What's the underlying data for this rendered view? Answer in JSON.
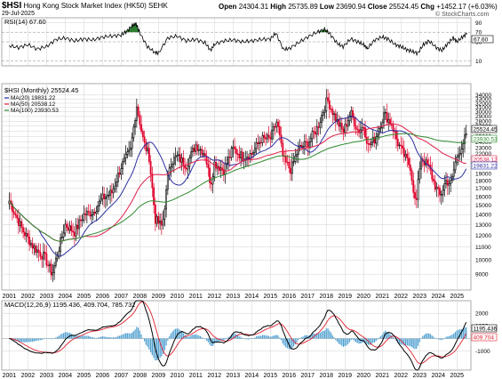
{
  "header": {
    "symbol": "$HSI",
    "name": "Hong Kong Stock Market Index (HK50)",
    "exchange": "SEHK",
    "date": "29-Jul-2025",
    "open_label": "Open",
    "open": "24304.31",
    "high_label": "High",
    "high": "25735.89",
    "low_label": "Low",
    "low": "23690.94",
    "close_label": "Close",
    "close": "25524.45",
    "chg_label": "Chg",
    "chg": "+1452.17 (+6.03%)",
    "source": "© StockCharts.com"
  },
  "colors": {
    "price_up": "#000000",
    "price_down": "#e0002a",
    "ma20": "#2c2fa0",
    "ma50": "#e0204a",
    "ma100": "#2e8b2e",
    "rsi_fill": "#2e7d32",
    "macd_line": "#000000",
    "signal_line": "#e02030",
    "histogram": "#4f9fd0",
    "grid": "#d0d0d0"
  },
  "chart_data": [
    {
      "id": "rsi",
      "type": "line",
      "title": "RSI(14) 67.60",
      "ylim": [
        0,
        100
      ],
      "y_ticks": [
        10,
        50,
        70,
        90
      ],
      "grid": true,
      "value_label": "67.60",
      "x": [
        2001.0,
        2001.5,
        2002.0,
        2002.5,
        2003.0,
        2003.5,
        2004.0,
        2004.5,
        2005.0,
        2005.5,
        2006.0,
        2006.5,
        2007.0,
        2007.3,
        2007.6,
        2007.8,
        2008.0,
        2008.4,
        2008.8,
        2009.0,
        2009.5,
        2010.0,
        2010.5,
        2011.0,
        2011.5,
        2011.8,
        2012.0,
        2012.5,
        2013.0,
        2013.5,
        2014.0,
        2014.5,
        2015.0,
        2015.3,
        2015.7,
        2016.0,
        2016.5,
        2017.0,
        2017.5,
        2017.9,
        2018.2,
        2018.6,
        2018.9,
        2019.3,
        2019.7,
        2020.0,
        2020.2,
        2020.6,
        2021.0,
        2021.3,
        2021.7,
        2022.0,
        2022.3,
        2022.6,
        2022.9,
        2023.2,
        2023.5,
        2023.9,
        2024.2,
        2024.5,
        2024.8,
        2025.0,
        2025.3,
        2025.55
      ],
      "values": [
        42,
        38,
        44,
        35,
        40,
        55,
        58,
        52,
        56,
        54,
        60,
        62,
        64,
        72,
        84,
        88,
        68,
        40,
        28,
        26,
        58,
        62,
        52,
        55,
        48,
        32,
        45,
        52,
        54,
        50,
        52,
        55,
        56,
        68,
        34,
        36,
        48,
        60,
        70,
        76,
        66,
        46,
        40,
        56,
        50,
        44,
        36,
        54,
        60,
        56,
        44,
        40,
        34,
        30,
        26,
        44,
        52,
        38,
        32,
        46,
        58,
        50,
        60,
        67.6
      ]
    },
    {
      "id": "price",
      "type": "candlestick",
      "title": "$HSI (Monthly) 25524.45",
      "scale": "log",
      "ylim": [
        8000,
        37000
      ],
      "y_ticks": [
        9000,
        10000,
        11000,
        12000,
        13000,
        14000,
        15000,
        16000,
        17000,
        18000,
        19000,
        20000,
        21000,
        22000,
        23000,
        24000,
        25000,
        26000,
        27000,
        28000,
        29000,
        30000,
        31000,
        32000,
        33000,
        34000
      ],
      "x_ticks": [
        "2001",
        "2002",
        "2003",
        "2004",
        "2005",
        "2006",
        "2007",
        "2008",
        "2009",
        "2010",
        "2011",
        "2012",
        "2013",
        "2014",
        "2015",
        "2016",
        "2017",
        "2018",
        "2019",
        "2020",
        "2021",
        "2022",
        "2023",
        "2024",
        "2025"
      ],
      "grid": true,
      "series": [
        {
          "name": "MA(20) 19831.22",
          "value_label": "19831.22"
        },
        {
          "name": "MA(50) 20538.12",
          "value_label": "20538.12"
        },
        {
          "name": "MA(100) 23930.53",
          "value_label": "23930.53"
        }
      ],
      "price_value_label": "25524.45",
      "anchor_x": [
        2001.0,
        2001.7,
        2002.3,
        2002.9,
        2003.3,
        2004.0,
        2004.5,
        2005.0,
        2005.5,
        2006.0,
        2006.5,
        2007.0,
        2007.5,
        2007.83,
        2008.2,
        2008.5,
        2008.83,
        2009.2,
        2009.6,
        2010.0,
        2010.5,
        2011.0,
        2011.5,
        2011.8,
        2012.0,
        2012.5,
        2013.0,
        2013.5,
        2014.0,
        2014.5,
        2015.0,
        2015.35,
        2015.7,
        2016.1,
        2016.5,
        2017.0,
        2017.5,
        2018.05,
        2018.5,
        2018.9,
        2019.3,
        2019.7,
        2020.0,
        2020.25,
        2020.6,
        2021.1,
        2021.5,
        2021.8,
        2022.2,
        2022.5,
        2022.8,
        2023.05,
        2023.5,
        2023.8,
        2024.1,
        2024.4,
        2024.7,
        2024.9,
        2025.2,
        2025.55
      ],
      "anchor_close": [
        15500,
        12500,
        11000,
        10200,
        9000,
        13000,
        12300,
        14000,
        14300,
        15800,
        16500,
        20000,
        22500,
        31600,
        24000,
        21500,
        13500,
        12800,
        20500,
        21500,
        20200,
        23500,
        22000,
        17500,
        20500,
        19500,
        22800,
        21500,
        22000,
        24500,
        24600,
        28000,
        21000,
        19500,
        22800,
        23800,
        26500,
        32900,
        28500,
        25800,
        29800,
        26000,
        27000,
        23300,
        24500,
        29500,
        27500,
        24000,
        21500,
        20000,
        14800,
        21500,
        19800,
        17500,
        16000,
        18000,
        17600,
        20500,
        23000,
        25524.45
      ]
    },
    {
      "id": "macd",
      "type": "line",
      "title": "MACD(12,26,9) 1195.436, 409.704, 785.732",
      "ylim": [
        -2500,
        3000
      ],
      "y_ticks": [
        -1000,
        0,
        1000,
        2000
      ],
      "grid": true,
      "series": [
        {
          "name": "MACD 1195.436",
          "value_label": "1195.436"
        },
        {
          "name": "Signal 409.704",
          "value_label": "409.704"
        },
        {
          "name": "Histogram 785.732",
          "value_label": "785.732"
        }
      ]
    }
  ]
}
